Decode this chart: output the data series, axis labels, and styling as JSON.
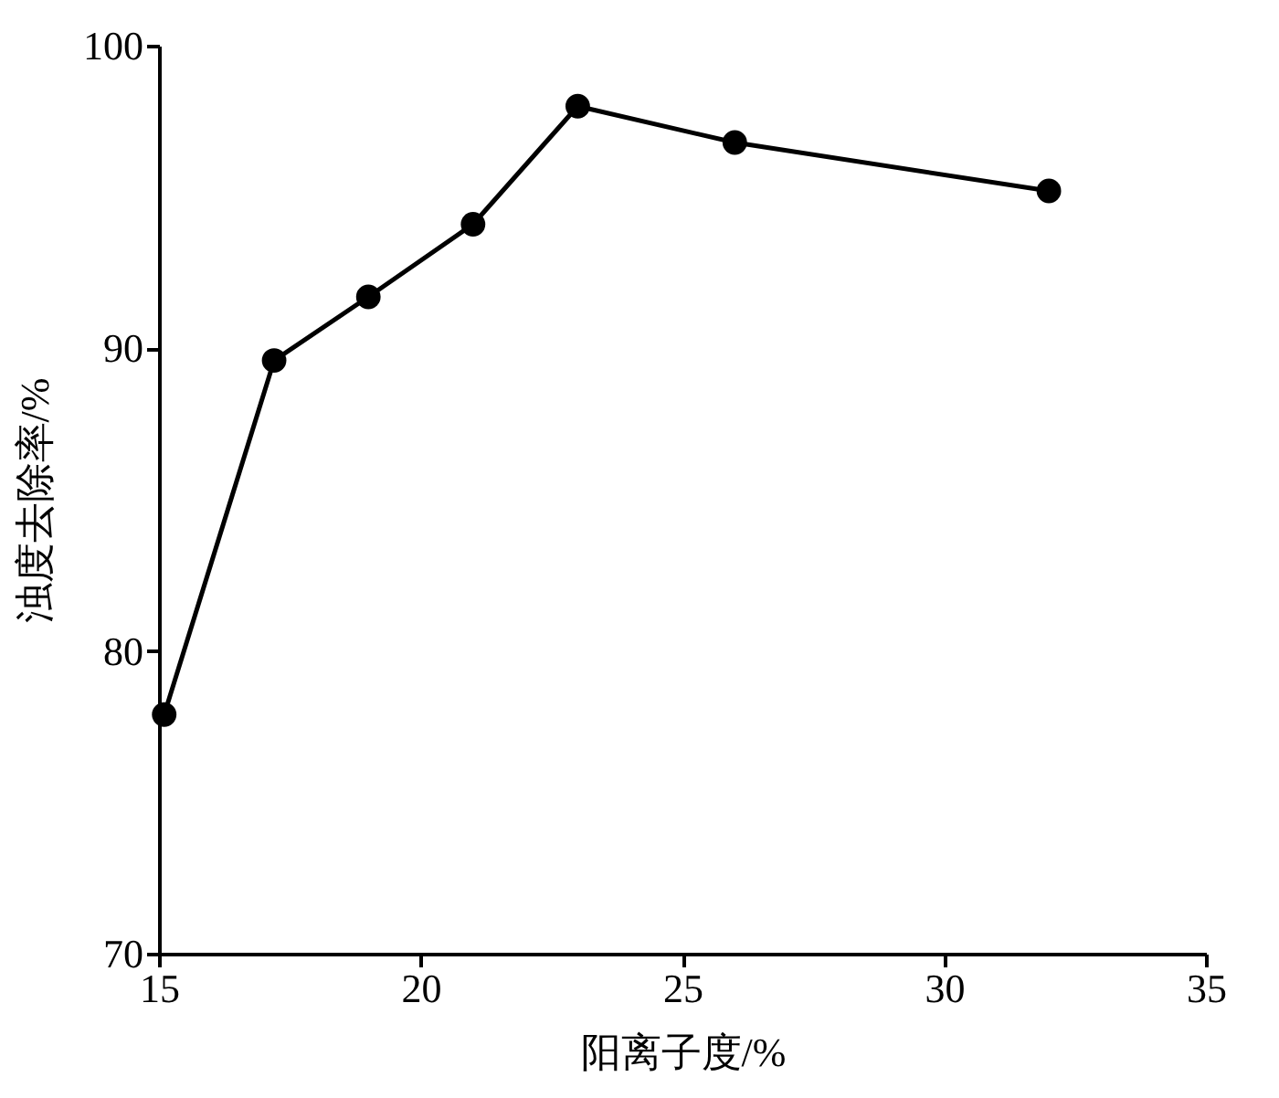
{
  "chart_data": {
    "type": "line",
    "xlabel": "阳离子度/%",
    "ylabel": "浊度去除率/%",
    "x": [
      15.1,
      17.2,
      19.0,
      21.0,
      23.0,
      26.0,
      32.0
    ],
    "series": [
      {
        "color": "#000000",
        "values": [
          77.9,
          89.6,
          91.7,
          94.1,
          98.0,
          96.8,
          95.2
        ]
      }
    ],
    "xlim": [
      15,
      35
    ],
    "xticks": [
      15,
      20,
      25,
      30,
      35
    ],
    "ylim": [
      70,
      100
    ],
    "yticks": [
      70,
      80,
      90,
      100
    ],
    "grid": false,
    "legend": false,
    "marker": "circle",
    "line_style": "solid"
  }
}
